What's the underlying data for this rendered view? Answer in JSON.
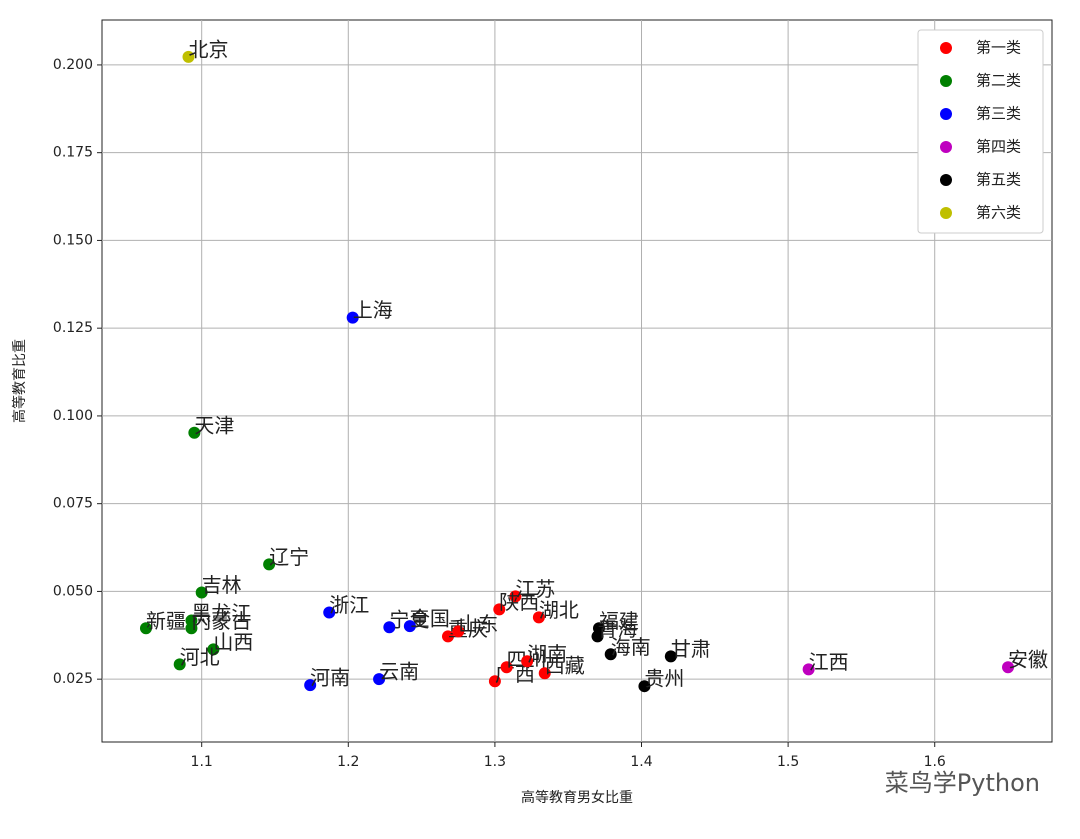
{
  "chart_data": {
    "type": "scatter",
    "xlabel": "高等教育男女比重",
    "ylabel": "高等教育比重",
    "xlim": [
      1.032,
      1.68
    ],
    "ylim": [
      0.0071,
      0.2128
    ],
    "xticks": [
      1.1,
      1.2,
      1.3,
      1.4,
      1.5,
      1.6
    ],
    "yticks": [
      0.025,
      {
        "value": 0.05,
        "label": "0.050"
      },
      0.075,
      {
        "value": 0.1,
        "label": "0.100"
      },
      0.125,
      {
        "value": 0.15,
        "label": "0.150"
      },
      0.175,
      {
        "value": 0.2,
        "label": "0.200"
      }
    ],
    "grid": true,
    "legend": "upper right",
    "watermark": "菜鸟学Python",
    "series": [
      {
        "name": "第一类",
        "color": "#ff0000",
        "labels": [
          "江苏",
          "陕西",
          "湖北",
          "重庆",
          "山东",
          "广西",
          "四川",
          "湖南",
          "西藏"
        ],
        "x": [
          1.314,
          1.303,
          1.33,
          1.268,
          1.275,
          1.3,
          1.308,
          1.322,
          1.334
        ],
        "values": [
          0.0486,
          0.0449,
          0.0426,
          0.0372,
          0.0386,
          0.0244,
          0.0284,
          0.0301,
          0.0267
        ]
      },
      {
        "name": "第二类",
        "color": "#008000",
        "labels": [
          "天津",
          "辽宁",
          "吉林",
          "新疆",
          "黑龙江",
          "内蒙古",
          "山西",
          "河北"
        ],
        "x": [
          1.095,
          1.146,
          1.1,
          1.062,
          1.093,
          1.093,
          1.108,
          1.085
        ],
        "values": [
          0.0952,
          0.0577,
          0.0497,
          0.0395,
          0.0417,
          0.0395,
          0.0335,
          0.0292
        ]
      },
      {
        "name": "第三类",
        "color": "#0000ff",
        "labels": [
          "上海",
          "浙江",
          "宁夏",
          "全国",
          "云南",
          "河南"
        ],
        "x": [
          1.203,
          1.187,
          1.228,
          1.242,
          1.221,
          1.174
        ],
        "values": [
          0.128,
          0.044,
          0.0398,
          0.0401,
          0.025,
          0.0233
        ]
      },
      {
        "name": "第四类",
        "color": "#bf00bf",
        "labels": [
          "江西",
          "安徽"
        ],
        "x": [
          1.514,
          1.65
        ],
        "values": [
          0.0278,
          0.0284
        ]
      },
      {
        "name": "第五类",
        "color": "#000000",
        "labels": [
          "福建",
          "青海",
          "海南",
          "甘肃",
          "贵州"
        ],
        "x": [
          1.371,
          1.37,
          1.379,
          1.42,
          1.402
        ],
        "values": [
          0.0395,
          0.0372,
          0.0321,
          0.0315,
          0.023
        ]
      },
      {
        "name": "第六类",
        "color": "#bfbf00",
        "labels": [
          "北京"
        ],
        "x": [
          1.091
        ],
        "values": [
          0.2023
        ]
      }
    ]
  }
}
